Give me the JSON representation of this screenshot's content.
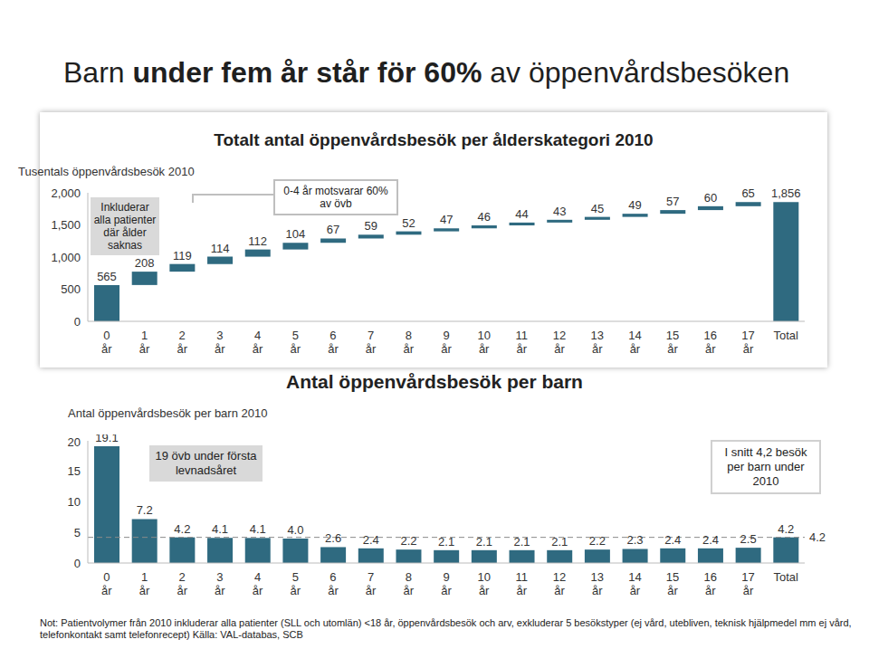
{
  "slide_title": [
    "Barn ",
    "under fem år står för 60%",
    " av öppenvårdsbesöken"
  ],
  "note": "Not: Patientvolymer från 2010 inkluderar alla patienter (SLL och utomlän) <18 år, öppenvårdsbesök och arv, exkluderar 5 besökstyper (ej vård, utebliven, teknisk hjälpmedel mm ej vård, telefonkontakt samt telefonrecept)   Källa: VAL-databas, SCB",
  "chart_data": [
    {
      "type": "waterfall",
      "title": "Totalt antal öppenvårdsbesök per ålderskategori 2010",
      "ylabel": "Tusentals öppenvårdsbesök 2010",
      "categories": [
        "0 år",
        "1 år",
        "2 år",
        "3 år",
        "4 år",
        "5 år",
        "6 år",
        "7 år",
        "8 år",
        "9 år",
        "10 år",
        "11 år",
        "12 år",
        "13 år",
        "14 år",
        "15 år",
        "16 år",
        "17 år",
        "Total"
      ],
      "values": [
        565,
        208,
        119,
        114,
        112,
        104,
        67,
        59,
        52,
        47,
        46,
        44,
        43,
        45,
        49,
        57,
        60,
        65,
        1856
      ],
      "value_labels": [
        "565",
        "208",
        "119",
        "114",
        "112",
        "104",
        "67",
        "59",
        "52",
        "47",
        "46",
        "44",
        "43",
        "45",
        "49",
        "57",
        "60",
        "65",
        "1,856"
      ],
      "color": "#2f6a80",
      "ylim": [
        0,
        2000
      ],
      "yticks": [
        0,
        500,
        {
          "value": 1000,
          "label": "1,000"
        },
        {
          "value": 1500,
          "label": "1,500"
        },
        {
          "value": 2000,
          "label": "2,000"
        }
      ],
      "data_labels": true,
      "grid": false,
      "annotations": [
        "Inkluderar alla patienter där ålder saknas",
        "0-4 år motsvarar 60% av övb"
      ]
    },
    {
      "type": "bar",
      "title": "Antal öppenvårdsbesök per barn",
      "ylabel": "Antal öppenvårdsbesök per barn 2010",
      "categories": [
        "0 år",
        "1 år",
        "2 år",
        "3 år",
        "4 år",
        "5 år",
        "6 år",
        "7 år",
        "8 år",
        "9 år",
        "10 år",
        "11 år",
        "12 år",
        "13 år",
        "14 år",
        "15 år",
        "16 år",
        "17 år",
        "Total"
      ],
      "values": [
        19.1,
        7.2,
        4.2,
        4.1,
        4.1,
        4.0,
        2.6,
        2.4,
        2.2,
        2.1,
        2.1,
        2.1,
        2.1,
        2.2,
        2.3,
        2.4,
        2.4,
        2.5,
        4.2
      ],
      "value_labels": [
        "19.1",
        "7.2",
        "4.2",
        "4.1",
        "4.1",
        "4.0",
        "2.6",
        "2.4",
        "2.2",
        "2.1",
        "2.1",
        "2.1",
        "2.1",
        "2.2",
        "2.3",
        "2.4",
        "2.4",
        "2.5",
        "4.2"
      ],
      "color": "#2f6a80",
      "ylim": [
        0,
        20
      ],
      "yticks": [
        0,
        5,
        10,
        15,
        20
      ],
      "data_labels": true,
      "grid": false,
      "reference_line": {
        "value": 4.2,
        "label": "4.2"
      },
      "annotations": [
        "19 övb under första levnadsåret",
        "I snitt 4,2 besök per barn under 2010"
      ]
    }
  ]
}
